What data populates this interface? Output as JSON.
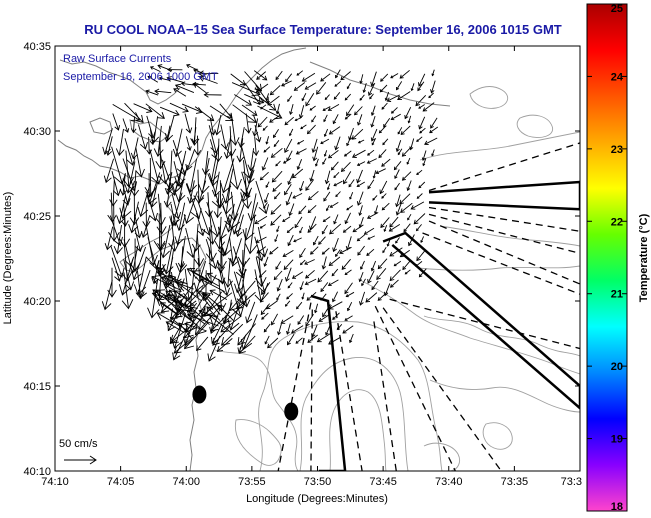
{
  "chart_data": {
    "type": "vector-field-map",
    "title": "RU COOL  NOAA−15  Sea Surface Temperature:  September 16, 2006 1015 GMT",
    "xlabel": "Longitude (Degrees:Minutes)",
    "ylabel": "Latitude (Degrees:Minutes)",
    "x_ticks": [
      "74:10",
      "74:05",
      "74:00",
      "73:55",
      "73:50",
      "73:45",
      "73:40",
      "73:35",
      "73:3"
    ],
    "y_ticks": [
      "40:10",
      "40:15",
      "40:20",
      "40:25",
      "40:30",
      "40:35"
    ],
    "xlim_min": [
      -74.1667,
      -73.5
    ],
    "ylim_min": [
      40.1667,
      40.5833
    ],
    "colorbar": {
      "label": "Temperature (°C)",
      "ticks": [
        "18",
        "19",
        "20",
        "21",
        "22",
        "23",
        "24",
        "25"
      ],
      "range": [
        18,
        25
      ],
      "colormap": [
        "#ff44cc",
        "#8800ff",
        "#0000ff",
        "#0088ff",
        "#00ffff",
        "#00ff66",
        "#66ff00",
        "#ffff00",
        "#ffaa00",
        "#ff5500",
        "#ff0000",
        "#aa0000"
      ]
    },
    "annotation_lines": [
      "Raw Surface Currents",
      "September 16, 2006 1000 GMT"
    ],
    "vector_scale_label": "50 cm/s",
    "field_color": "#000000",
    "contour_color": "#a0a0a0",
    "coast_color": "#808080",
    "markers": [
      {
        "lon": -73.9833,
        "lat": 40.2417
      },
      {
        "lon": -73.8667,
        "lat": 40.225
      }
    ],
    "lanes_solid": [
      [
        [
          -73.6917,
          40.44
        ],
        [
          -73.5,
          40.45
        ],
        [
          -73.5,
          40.4233
        ],
        [
          -73.6917,
          40.43
        ]
      ],
      [
        [
          -73.8417,
          40.3383
        ],
        [
          -73.82,
          40.3333
        ],
        [
          -73.7983,
          40.1667
        ],
        [
          -73.8317,
          40.1667
        ]
      ],
      [
        [
          -73.75,
          40.3917
        ],
        [
          -73.7217,
          40.4
        ],
        [
          -73.5,
          40.25
        ],
        [
          -73.5,
          40.2283
        ],
        [
          -73.7383,
          40.3883
        ]
      ]
    ],
    "lanes_dashed": [
      [
        [
          -73.6917,
          40.4417
        ],
        [
          -73.5,
          40.4883
        ]
      ],
      [
        [
          -73.6917,
          40.425
        ],
        [
          -73.5,
          40.4017
        ]
      ],
      [
        [
          -73.6917,
          40.4183
        ],
        [
          -73.5,
          40.38
        ]
      ],
      [
        [
          -73.6917,
          40.4117
        ],
        [
          -73.5,
          40.35
        ]
      ],
      [
        [
          -73.7,
          40.4
        ],
        [
          -73.5,
          40.34
        ]
      ],
      [
        [
          -73.7417,
          40.335
        ],
        [
          -73.5,
          40.2867
        ]
      ],
      [
        [
          -73.75,
          40.3267
        ],
        [
          -73.6,
          40.1667
        ]
      ],
      [
        [
          -73.76,
          40.3283
        ],
        [
          -73.6583,
          40.1667
        ]
      ],
      [
        [
          -73.7617,
          40.3133
        ],
        [
          -73.7333,
          40.1667
        ]
      ],
      [
        [
          -73.8417,
          40.3317
        ],
        [
          -73.8833,
          40.1667
        ]
      ],
      [
        [
          -73.84,
          40.325
        ],
        [
          -73.8417,
          40.1667
        ]
      ],
      [
        [
          -73.81,
          40.3233
        ],
        [
          -73.7767,
          40.1667
        ]
      ]
    ]
  }
}
